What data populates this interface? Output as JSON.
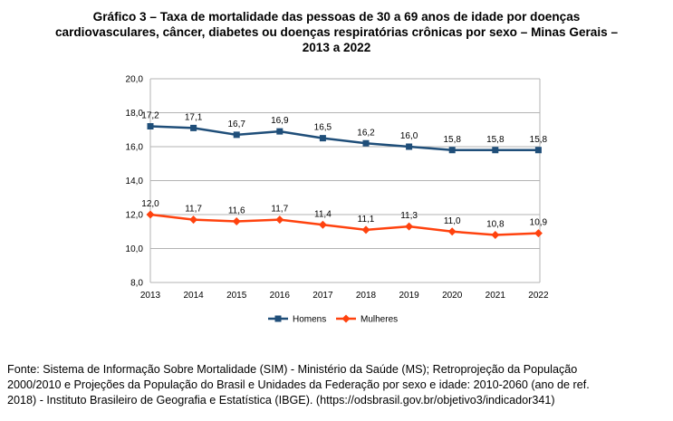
{
  "title_lines": [
    "Gráfico 3 – Taxa de mortalidade das pessoas de 30 a 69 anos de idade por doenças",
    "cardiovasculares, câncer, diabetes ou doenças respiratórias crônicas por sexo – Minas Gerais –",
    "2013 a 2022"
  ],
  "source_lines": [
    "Fonte: Sistema de Informação Sobre Mortalidade (SIM) - Ministério da Saúde (MS); Retroprojeção da População",
    "2000/2010 e Projeções da População do Brasil e Unidades da Federação por sexo e idade: 2010-2060 (ano de ref.",
    "2018) - Instituto Brasileiro de Geografia e Estatística (IBGE). (https://odsbrasil.gov.br/objetivo3/indicador341)"
  ],
  "chart_data": {
    "type": "line",
    "title": "Gráfico 3 – Taxa de mortalidade das pessoas de 30 a 69 anos de idade por doenças cardiovasculares, câncer, diabetes ou doenças respiratórias crônicas por sexo – Minas Gerais – 2013 a 2022",
    "x": [
      "2013",
      "2014",
      "2015",
      "2016",
      "2017",
      "2018",
      "2019",
      "2020",
      "2021",
      "2022"
    ],
    "ylim": [
      8,
      20
    ],
    "yticks": [
      "8,0",
      "10,0",
      "12,0",
      "14,0",
      "16,0",
      "18,0",
      "20,0"
    ],
    "ytick_values": [
      8,
      10,
      12,
      14,
      16,
      18,
      20
    ],
    "grid": "horizontal",
    "legend_position": "bottom",
    "series": [
      {
        "name": "Homens",
        "color": "#1f4e79",
        "marker": "square",
        "values": [
          17.2,
          17.1,
          16.7,
          16.9,
          16.5,
          16.2,
          16.0,
          15.8,
          15.8,
          15.8
        ],
        "labels": [
          "17,2",
          "17,1",
          "16,7",
          "16,9",
          "16,5",
          "16,2",
          "16,0",
          "15,8",
          "15,8",
          "15,8"
        ]
      },
      {
        "name": "Mulheres",
        "color": "#ff420e",
        "marker": "diamond",
        "values": [
          12.0,
          11.7,
          11.6,
          11.7,
          11.4,
          11.1,
          11.3,
          11.0,
          10.8,
          10.9
        ],
        "labels": [
          "12,0",
          "11,7",
          "11,6",
          "11,7",
          "11,4",
          "11,1",
          "11,3",
          "11,0",
          "10,8",
          "10,9"
        ]
      }
    ]
  }
}
